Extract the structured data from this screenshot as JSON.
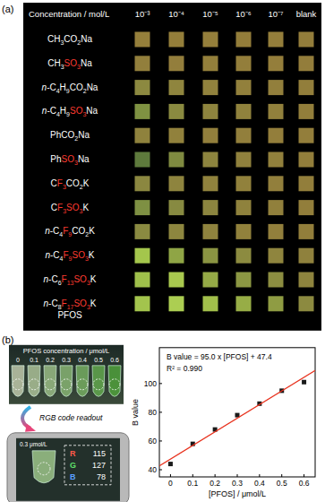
{
  "figure": {
    "panel_a": {
      "label": "(a)",
      "header": "Concentration / mol/L",
      "columns": [
        "10⁻³",
        "10⁻⁴",
        "10⁻⁵",
        "10⁻⁶",
        "10⁻⁷",
        "blank"
      ],
      "rows": [
        {
          "label": [
            {
              "text": "CH3CO2Na"
            }
          ],
          "colors": [
            "#957f3b",
            "#947e3a",
            "#957f3b",
            "#937d3a",
            "#947e3b",
            "#937d3b"
          ]
        },
        {
          "label": [
            {
              "text": "CH3"
            },
            {
              "text": "SO3",
              "red": true
            },
            {
              "text": "Na"
            }
          ],
          "colors": [
            "#927f3c",
            "#937e3c",
            "#937f3b",
            "#937e3b",
            "#947e3b",
            "#937d3b"
          ]
        },
        {
          "label": [
            {
              "text": "n-C4H9CO2Na"
            }
          ],
          "colors": [
            "#8c8940",
            "#8f853e",
            "#91823d",
            "#92803c",
            "#927f3c",
            "#927e3b"
          ]
        },
        {
          "label": [
            {
              "text": "n-C4H9"
            },
            {
              "text": "SO3",
              "red": true
            },
            {
              "text": "Na"
            }
          ],
          "colors": [
            "#7f9242",
            "#8a8a40",
            "#8e843e",
            "#90823d",
            "#91803c",
            "#927e3b"
          ]
        },
        {
          "label": [
            {
              "text": "PhCO2Na"
            }
          ],
          "colors": [
            "#8f823d",
            "#91813c",
            "#927f3c",
            "#927f3c",
            "#937e3b",
            "#937e3b"
          ]
        },
        {
          "label": [
            {
              "text": "Ph"
            },
            {
              "text": "SO3",
              "red": true
            },
            {
              "text": "Na"
            }
          ],
          "colors": [
            "#5e7a3c",
            "#7f8a40",
            "#8d843e",
            "#90813d",
            "#91803c",
            "#927e3b"
          ]
        },
        {
          "label": [
            {
              "text": "C"
            },
            {
              "text": "F3",
              "red": true
            },
            {
              "text": "CO2K"
            }
          ],
          "colors": [
            "#8b8740",
            "#8e843e",
            "#90823d",
            "#91813c",
            "#927f3c",
            "#927e3b"
          ]
        },
        {
          "label": [
            {
              "text": "C"
            },
            {
              "text": "F3",
              "red": true
            },
            {
              "text": "SO3",
              "red": true
            },
            {
              "text": "K"
            }
          ],
          "colors": [
            "#7e9043",
            "#878a41",
            "#8c853f",
            "#8f823d",
            "#91803c",
            "#927e3b"
          ]
        },
        {
          "label": [
            {
              "text": "n-C4"
            },
            {
              "text": "F9",
              "red": true
            },
            {
              "text": "CO2K"
            }
          ],
          "colors": [
            "#8a8a41",
            "#8d863f",
            "#8f833e",
            "#91813c",
            "#927f3c",
            "#927e3b"
          ]
        },
        {
          "label": [
            {
              "text": "n-C4"
            },
            {
              "text": "F9",
              "red": true
            },
            {
              "text": "SO3",
              "red": true
            },
            {
              "text": "K"
            }
          ],
          "colors": [
            "#a4c64c",
            "#8fa545",
            "#8a9442",
            "#8c8b40",
            "#8f853e",
            "#8f813d"
          ]
        },
        {
          "label": [
            {
              "text": "n-C6"
            },
            {
              "text": "F13",
              "red": true
            },
            {
              "text": "SO3",
              "red": true
            },
            {
              "text": "K"
            }
          ],
          "colors": [
            "#9fc04b",
            "#a9c94f",
            "#95aa46",
            "#8c9743",
            "#8c8d41",
            "#8e843e"
          ]
        },
        {
          "label": [
            {
              "text": "n-C8"
            },
            {
              "text": "F17",
              "red": true
            },
            {
              "text": "SO3",
              "red": true
            },
            {
              "text": "K"
            }
          ],
          "colors": [
            "#a3c44d",
            "#acce52",
            "#a2bf4b",
            "#97ad46",
            "#8f9c43",
            "#8c8a40"
          ]
        }
      ],
      "row_note": "PFOS"
    },
    "panel_b": {
      "label": "(b)",
      "photo": {
        "title": "PFOS concentration / μmol/L",
        "concentrations": [
          0,
          0.1,
          0.2,
          0.3,
          0.4,
          0.5,
          0.6
        ]
      },
      "readout": "RGB code readout",
      "phone": {
        "concentration": 0.3,
        "unit": "μmol/L",
        "rgb": [
          {
            "channel": "R",
            "value": 115
          },
          {
            "channel": "G",
            "value": 127
          },
          {
            "channel": "B",
            "value": 78
          }
        ]
      }
    }
  },
  "chart_data": {
    "type": "scatter",
    "x_label": "[PFOS] / μmol/L",
    "y_label": "B value",
    "annotations": [
      "B value = 95.0 x [PFOS] + 47.4",
      "R² = 0.990"
    ],
    "xlim": [
      -0.05,
      0.65
    ],
    "ylim": [
      35,
      125
    ],
    "xticks": [
      0,
      0.1,
      0.2,
      0.3,
      0.4,
      0.5,
      0.6
    ],
    "yticks": [
      40,
      60,
      80,
      100
    ],
    "grid": false,
    "series": [
      {
        "type": "scatter",
        "marker": "square",
        "color": "#1a1a1a",
        "x": [
          0,
          0.1,
          0.2,
          0.3,
          0.4,
          0.5,
          0.6
        ],
        "values": [
          44,
          58,
          68,
          78,
          86,
          95,
          101
        ]
      },
      {
        "type": "line",
        "line_style": "solid",
        "color": "#e8321e",
        "x": [
          -0.05,
          0.65
        ],
        "values": [
          42.65,
          109.15
        ]
      }
    ]
  }
}
